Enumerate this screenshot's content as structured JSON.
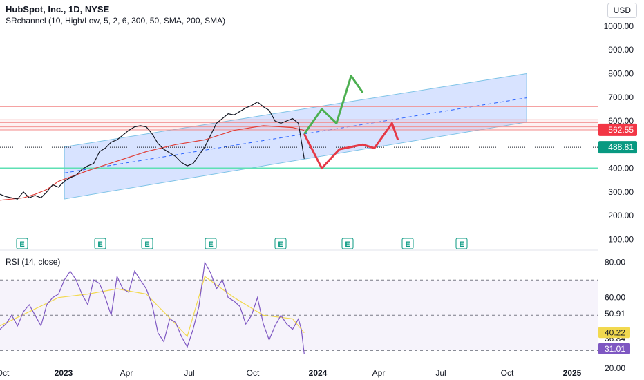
{
  "header": {
    "title": "HubSpot, Inc., 1D, NYSE",
    "indicator": "SRchannel (10, High/Low, 5, 2, 6, 300, 50, SMA, 200, SMA)",
    "currency": "USD"
  },
  "rsi": {
    "label": "RSI (14, close)",
    "ticks": [
      "80.00",
      "60.00",
      "50.91",
      "36.84",
      "20.00"
    ],
    "value_badge": "31.01",
    "ma_badge": "40.22"
  },
  "colors": {
    "price": "#131722",
    "channel_fill": "#2962ff",
    "channel_line": "#7ec3e6",
    "sr_line": "#f28b8b",
    "support_line": "#5ee0b4",
    "sma": "#e0403a",
    "bull_arrow": "#4caf50",
    "bear_arrow": "#e53946",
    "rsi_line": "#7e57c2",
    "rsi_ma": "#f2d94f",
    "earnings_icon": "#089981"
  },
  "chart_data": [
    {
      "type": "line",
      "title": "HubSpot, Inc., 1D, NYSE",
      "xlabel": "",
      "ylabel": "USD",
      "x_ticks": [
        "Oct",
        "2023",
        "Apr",
        "Jul",
        "Oct",
        "2024",
        "Apr",
        "Jul",
        "Oct",
        "2025"
      ],
      "y_ticks": [
        100,
        200,
        300,
        400,
        500,
        600,
        700,
        800,
        900,
        1000
      ],
      "ylim": [
        60,
        1070
      ],
      "price_badges": [
        "562.55",
        "488.81"
      ],
      "earnings_markers": [
        "E",
        "E",
        "E",
        "E",
        "E",
        "E",
        "E",
        "E"
      ],
      "series": [
        {
          "name": "",
          "values": [
            [
              0,
              290
            ],
            [
              2,
              280
            ],
            [
              4,
              275
            ],
            [
              6,
              270
            ],
            [
              8,
              300
            ],
            [
              10,
              275
            ],
            [
              12,
              285
            ],
            [
              14,
              275
            ],
            [
              16,
              300
            ],
            [
              18,
              330
            ],
            [
              20,
              320
            ],
            [
              22,
              345
            ],
            [
              24,
              360
            ],
            [
              26,
              370
            ],
            [
              28,
              395
            ],
            [
              30,
              410
            ],
            [
              32,
              420
            ],
            [
              34,
              470
            ],
            [
              36,
              485
            ],
            [
              38,
              510
            ],
            [
              40,
              520
            ],
            [
              42,
              540
            ],
            [
              44,
              560
            ],
            [
              46,
              575
            ],
            [
              48,
              580
            ],
            [
              50,
              575
            ],
            [
              52,
              545
            ],
            [
              54,
              505
            ],
            [
              56,
              480
            ],
            [
              58,
              465
            ],
            [
              60,
              450
            ],
            [
              62,
              425
            ],
            [
              64,
              410
            ],
            [
              66,
              420
            ],
            [
              68,
              455
            ],
            [
              70,
              490
            ],
            [
              72,
              540
            ],
            [
              74,
              590
            ],
            [
              76,
              610
            ],
            [
              78,
              630
            ],
            [
              80,
              625
            ],
            [
              82,
              640
            ],
            [
              84,
              655
            ],
            [
              86,
              665
            ],
            [
              88,
              680
            ],
            [
              90,
              660
            ],
            [
              92,
              645
            ],
            [
              94,
              600
            ],
            [
              96,
              590
            ],
            [
              98,
              600
            ],
            [
              100,
              610
            ],
            [
              102,
              590
            ],
            [
              104,
              440
            ]
          ]
        },
        {
          "name": "",
          "values": [
            [
              0,
              265
            ],
            [
              8,
              275
            ],
            [
              12,
              290
            ],
            [
              16,
              310
            ],
            [
              20,
              345
            ],
            [
              30,
              390
            ],
            [
              40,
              430
            ],
            [
              50,
              470
            ],
            [
              60,
              500
            ],
            [
              70,
              520
            ],
            [
              80,
              560
            ],
            [
              90,
              580
            ],
            [
              100,
              572
            ],
            [
              104,
              560
            ]
          ]
        }
      ],
      "channel": {
        "start": [
          22,
          270,
          490
        ],
        "end": [
          180,
          595,
          800
        ]
      },
      "sr_levels": [
        660,
        605,
        593,
        575,
        562
      ],
      "support_level": 400,
      "bull_path": [
        [
          104,
          545
        ],
        [
          110,
          650
        ],
        [
          115,
          590
        ],
        [
          120,
          790
        ],
        [
          124,
          720
        ]
      ],
      "bear_path": [
        [
          104,
          545
        ],
        [
          110,
          400
        ],
        [
          116,
          480
        ],
        [
          124,
          500
        ],
        [
          128,
          485
        ],
        [
          134,
          590
        ],
        [
          136,
          520
        ]
      ],
      "xlim": [
        0,
        190
      ]
    },
    {
      "type": "line",
      "title": "RSI (14, close)",
      "xlabel": "",
      "ylabel": "",
      "y_ticks": [
        20,
        36.84,
        50.91,
        60,
        80
      ],
      "ylim": [
        18,
        83
      ],
      "bands": [
        70,
        50,
        30
      ],
      "series": [
        {
          "name": "",
          "values": [
            [
              0,
              42
            ],
            [
              2,
              45
            ],
            [
              4,
              50
            ],
            [
              6,
              44
            ],
            [
              8,
              52
            ],
            [
              10,
              56
            ],
            [
              12,
              50
            ],
            [
              14,
              44
            ],
            [
              16,
              56
            ],
            [
              18,
              60
            ],
            [
              20,
              62
            ],
            [
              22,
              70
            ],
            [
              24,
              75
            ],
            [
              26,
              70
            ],
            [
              28,
              62
            ],
            [
              30,
              56
            ],
            [
              32,
              70
            ],
            [
              34,
              68
            ],
            [
              36,
              60
            ],
            [
              38,
              50
            ],
            [
              40,
              72
            ],
            [
              42,
              65
            ],
            [
              44,
              63
            ],
            [
              46,
              75
            ],
            [
              48,
              70
            ],
            [
              50,
              65
            ],
            [
              52,
              56
            ],
            [
              54,
              40
            ],
            [
              56,
              35
            ],
            [
              58,
              48
            ],
            [
              60,
              46
            ],
            [
              62,
              38
            ],
            [
              64,
              32
            ],
            [
              66,
              42
            ],
            [
              68,
              55
            ],
            [
              70,
              80
            ],
            [
              72,
              74
            ],
            [
              74,
              65
            ],
            [
              76,
              70
            ],
            [
              78,
              60
            ],
            [
              80,
              58
            ],
            [
              82,
              55
            ],
            [
              84,
              45
            ],
            [
              86,
              50
            ],
            [
              88,
              60
            ],
            [
              90,
              45
            ],
            [
              92,
              36
            ],
            [
              94,
              44
            ],
            [
              96,
              50
            ],
            [
              98,
              45
            ],
            [
              100,
              42
            ],
            [
              102,
              48
            ],
            [
              103,
              42
            ],
            [
              104,
              28
            ]
          ]
        },
        {
          "name": "",
          "values": [
            [
              0,
              44
            ],
            [
              10,
              52
            ],
            [
              20,
              60
            ],
            [
              30,
              62
            ],
            [
              40,
              65
            ],
            [
              50,
              62
            ],
            [
              60,
              45
            ],
            [
              64,
              38
            ],
            [
              70,
              72
            ],
            [
              80,
              60
            ],
            [
              90,
              50
            ],
            [
              100,
              48
            ],
            [
              104,
              40
            ]
          ]
        }
      ]
    }
  ]
}
